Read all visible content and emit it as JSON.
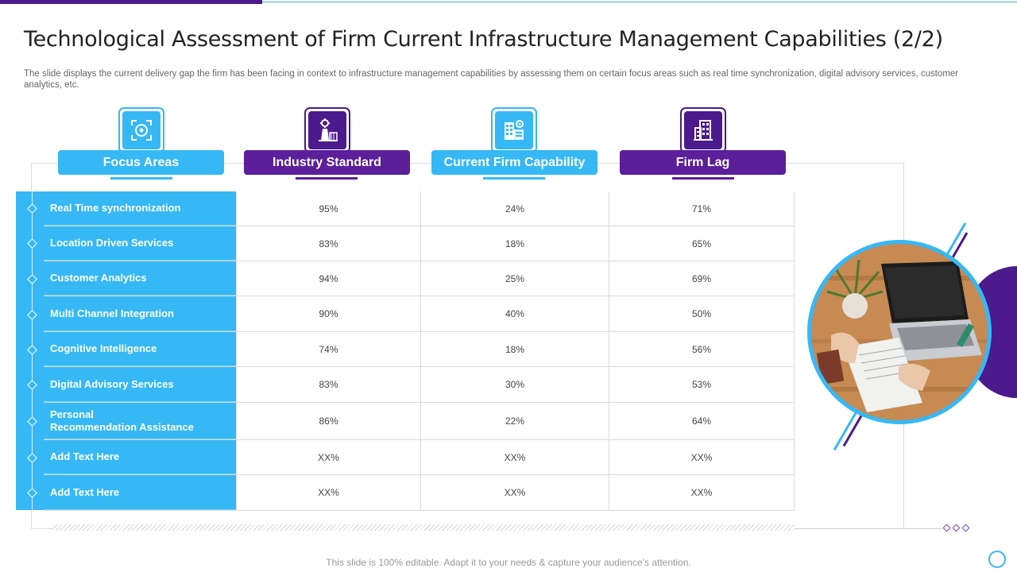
{
  "slide": {
    "title": "Technological Assessment of Firm Current Infrastructure Management Capabilities (2/2)",
    "subtitle": "The slide displays the current delivery gap the firm has been facing in context to infrastructure management capabilities by assessing them on certain focus areas such as real time synchronization, digital advisory services, customer analytics, etc.",
    "footer": "This slide is 100% editable. Adapt it to your needs & capture your audience’s attention."
  },
  "columns": [
    {
      "label": "Focus Areas",
      "icon": "target-icon",
      "color": "#36b8f5"
    },
    {
      "label": "Industry Standard",
      "icon": "factory-icon",
      "color": "#5a1f99"
    },
    {
      "label": "Current Firm Capability",
      "icon": "office-building-gear-icon",
      "color": "#36b8f5"
    },
    {
      "label": "Firm Lag",
      "icon": "building-icon",
      "color": "#5a1f99"
    }
  ],
  "rows": [
    {
      "area": "Real Time synchronization",
      "industry": "95%",
      "current": "24%",
      "lag": "71%"
    },
    {
      "area": "Location Driven  Services",
      "industry": "83%",
      "current": "18%",
      "lag": "65%"
    },
    {
      "area": "Customer  Analytics",
      "industry": "94%",
      "current": "25%",
      "lag": "69%"
    },
    {
      "area": "Multi Channel Integration",
      "industry": "90%",
      "current": "40%",
      "lag": "50%"
    },
    {
      "area": "Cognitive Intelligence",
      "industry": "74%",
      "current": "18%",
      "lag": "56%"
    },
    {
      "area": "Digital Advisory  Services",
      "industry": "83%",
      "current": "30%",
      "lag": "53%"
    },
    {
      "area": "Personal\nRecommendation Assistance",
      "industry": "86%",
      "current": "22%",
      "lag": "64%"
    },
    {
      "area": "Add  Text Here",
      "industry": "XX%",
      "current": "XX%",
      "lag": "XX%"
    },
    {
      "area": "Add  Text Here",
      "industry": "XX%",
      "current": "XX%",
      "lag": "XX%"
    }
  ],
  "colors": {
    "accent_blue": "#36b8f5",
    "accent_purple": "#5a1f99",
    "dark_purple": "#4b1a8c"
  }
}
